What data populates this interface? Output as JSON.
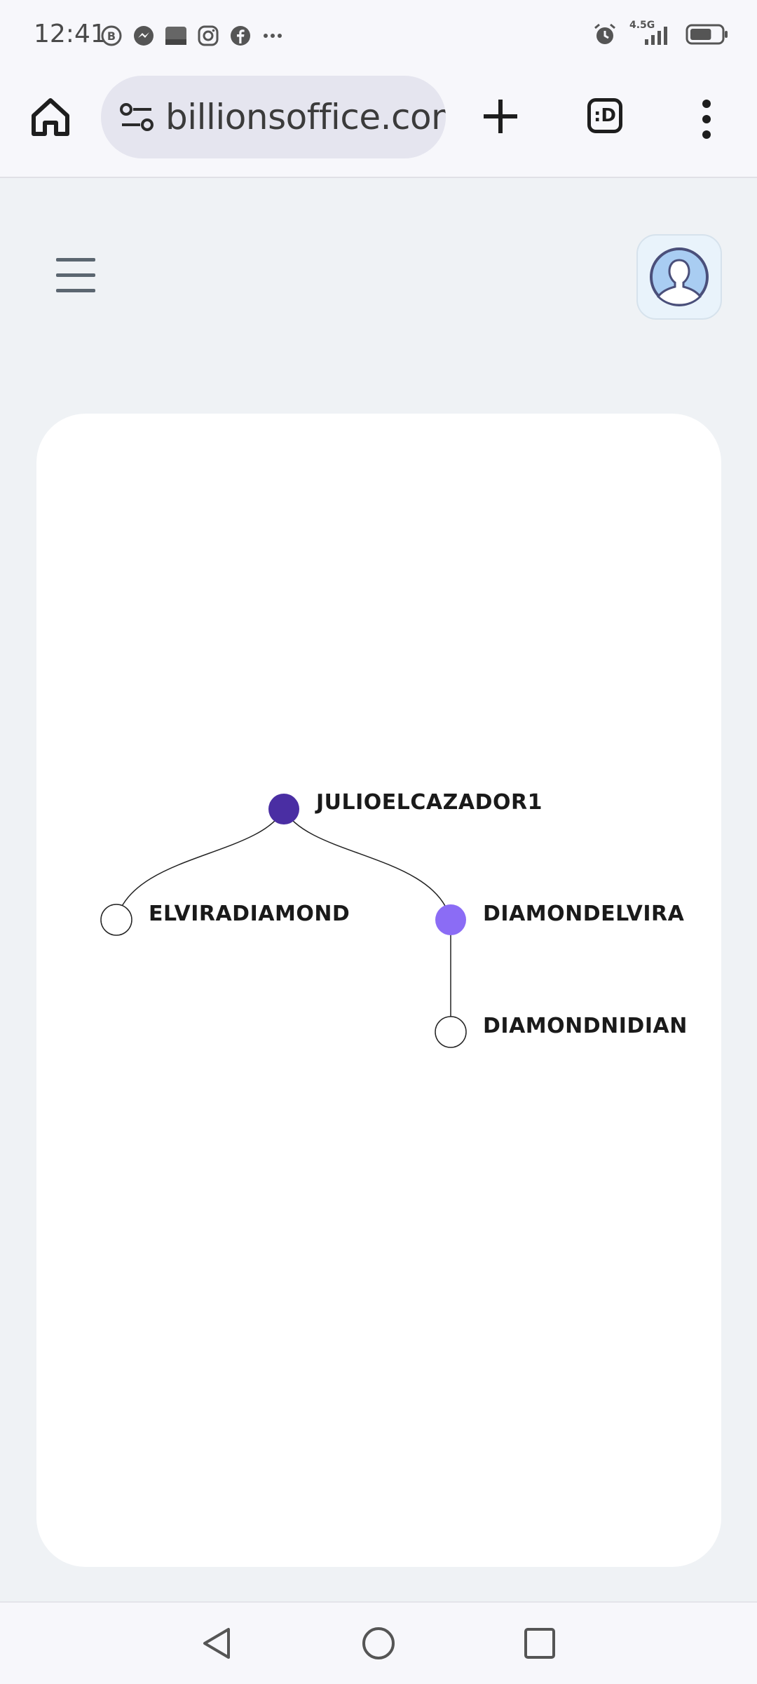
{
  "status_bar": {
    "time": "12:41",
    "notification_icons": [
      "b-chat-icon",
      "messenger-icon",
      "media-thumbnail-icon",
      "instagram-icon",
      "facebook-icon",
      "more-dots-icon"
    ],
    "network": "4.5G",
    "battery_level": 0.7
  },
  "browser": {
    "url": "billionsoffice.com",
    "tabs_label": ":D"
  },
  "tree": {
    "nodes": [
      {
        "id": "root",
        "label": "JULIOELCAZADOR1",
        "style": "filled-dark"
      },
      {
        "id": "left",
        "label": "ELVIRADIAMOND",
        "style": "hollow"
      },
      {
        "id": "right",
        "label": "DIAMONDELVIRA",
        "style": "filled-light"
      },
      {
        "id": "grand",
        "label": "DIAMONDNIDIAN",
        "style": "hollow"
      }
    ],
    "edges": [
      [
        "root",
        "left"
      ],
      [
        "root",
        "right"
      ],
      [
        "right",
        "grand"
      ]
    ],
    "colors": {
      "filled_dark": "#4a2ea3",
      "filled_light": "#8b6cf5",
      "hollow_stroke": "#222222"
    }
  }
}
